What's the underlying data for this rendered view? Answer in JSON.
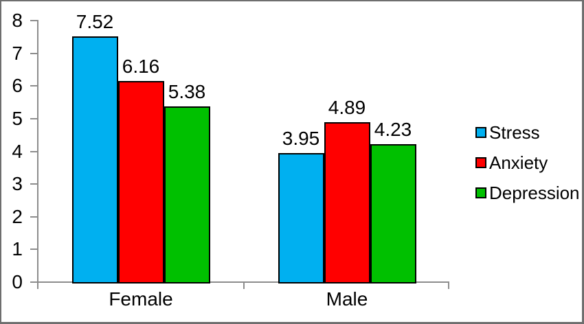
{
  "chart_data": {
    "type": "bar",
    "categories": [
      "Female",
      "Male"
    ],
    "series": [
      {
        "name": "Stress",
        "color": "#00B0F0",
        "values": [
          7.52,
          3.95
        ]
      },
      {
        "name": "Anxiety",
        "color": "#FF0000",
        "values": [
          6.16,
          4.89
        ]
      },
      {
        "name": "Depression",
        "color": "#00C000",
        "values": [
          5.38,
          4.23
        ]
      }
    ],
    "value_labels": [
      [
        "7.52",
        "3.95"
      ],
      [
        "6.16",
        "4.89"
      ],
      [
        "5.38",
        "4.23"
      ]
    ],
    "ylim": [
      0,
      8
    ],
    "yticks": [
      "0",
      "1",
      "2",
      "3",
      "4",
      "5",
      "6",
      "7",
      "8"
    ],
    "grid": false,
    "legend_position": "right",
    "legend_entries": [
      "Stress",
      "Anxiety",
      "Depression"
    ]
  },
  "colors": {
    "bar_border": "#000000",
    "axis": "#8c8c8c",
    "frame_border": "#6e6e6e",
    "background": "#ffffff",
    "text": "#000000"
  }
}
